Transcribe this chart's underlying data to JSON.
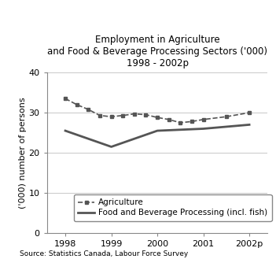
{
  "title_line1": "Employment in Agriculture",
  "title_line2": "and Food & Beverage Processing Sectors ('000)",
  "title_line3": "1998 - 2002p",
  "source": "Source: Statistics Canada, Labour Force Survey",
  "x_labels": [
    "1998",
    "1999",
    "2000",
    "2001",
    "2002p"
  ],
  "x_values": [
    1998,
    1999,
    2000,
    2001,
    2002
  ],
  "agriculture": [
    33.5,
    32.0,
    30.8,
    29.3,
    29.0,
    29.3,
    29.7,
    29.5,
    28.8,
    28.3,
    27.5,
    27.8,
    28.3,
    29.0,
    30.0
  ],
  "agriculture_x": [
    1998.0,
    1998.25,
    1998.5,
    1998.75,
    1999.0,
    1999.25,
    1999.5,
    1999.75,
    2000.0,
    2000.25,
    2000.5,
    2000.75,
    2001.0,
    2001.5,
    2002.0
  ],
  "food_beverage": [
    25.5,
    21.5,
    25.5,
    26.0,
    27.0
  ],
  "ylabel": "('000) number of persons",
  "ylim": [
    0,
    40
  ],
  "yticks": [
    0,
    10,
    20,
    30,
    40
  ],
  "legend_agriculture": "Agriculture",
  "legend_food": "Food and Beverage Processing (incl. fish)",
  "line_color": "#555555",
  "bg_color": "#ffffff",
  "grid_color": "#c8c8c8",
  "title_fontsize": 8.5,
  "axis_fontsize": 8,
  "legend_fontsize": 7.5,
  "source_fontsize": 6.5
}
